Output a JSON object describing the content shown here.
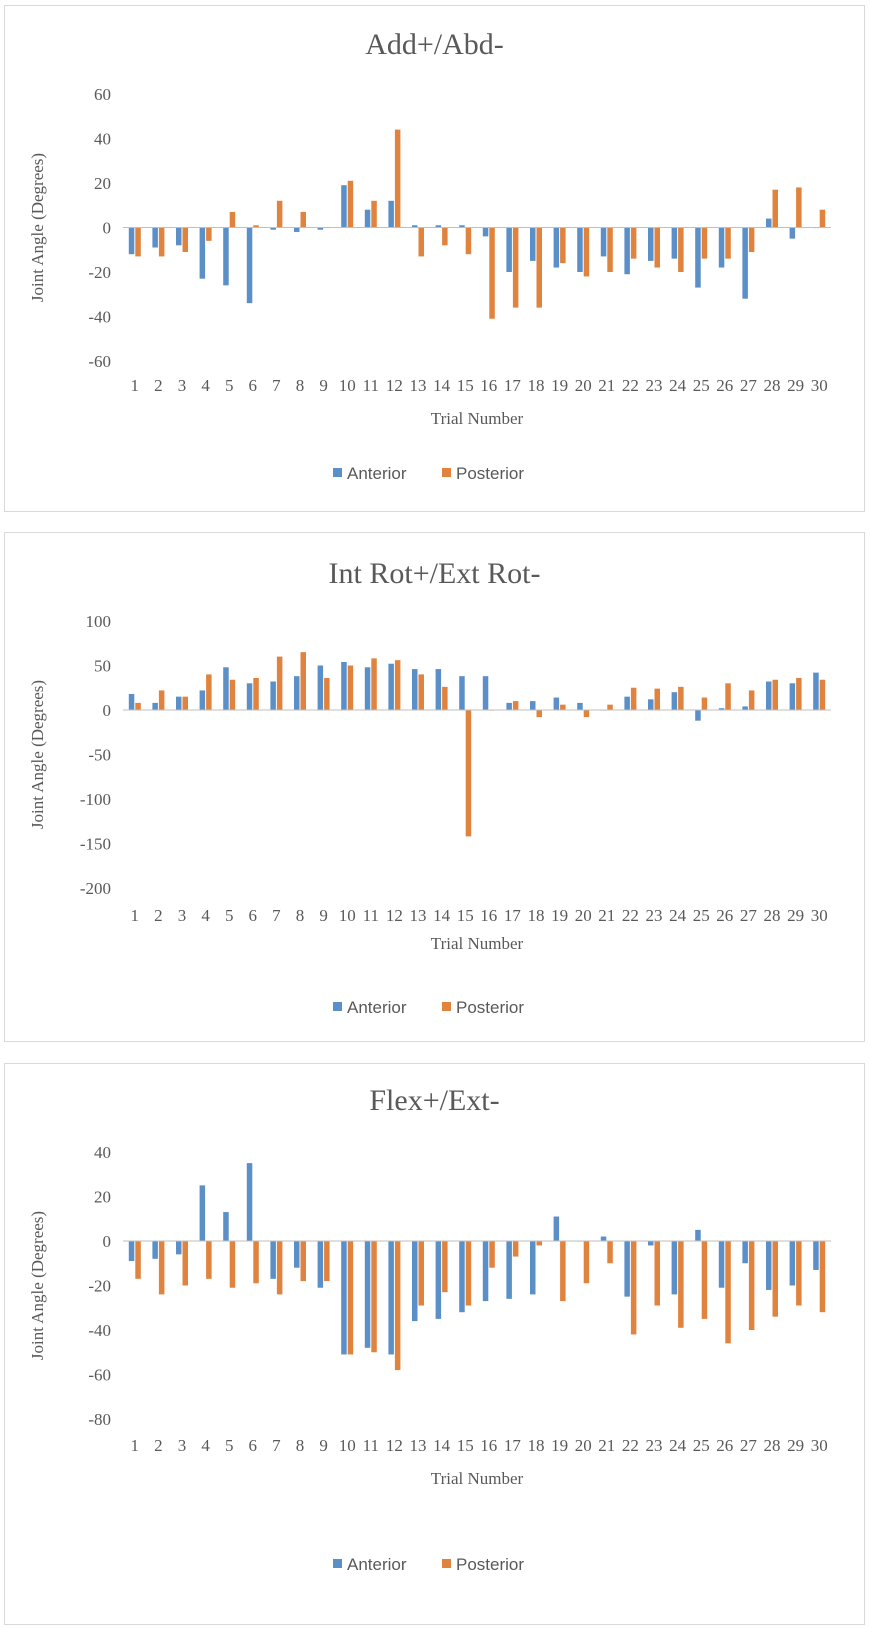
{
  "colors": {
    "anterior": "#5b8fc7",
    "posterior": "#e0833e",
    "axis": "#bfbfbf",
    "text": "#595959"
  },
  "chart_data": [
    {
      "type": "bar",
      "title": "Add+/Abd-",
      "xlabel": "Trial Number",
      "ylabel": "Joint Angle (Degrees)",
      "ylim": [
        -60,
        60
      ],
      "yticks": [
        60,
        40,
        20,
        0,
        -20,
        -40,
        -60
      ],
      "legend": "bottom",
      "grid": false,
      "categories": [
        "1",
        "2",
        "3",
        "4",
        "5",
        "6",
        "7",
        "8",
        "9",
        "10",
        "11",
        "12",
        "13",
        "14",
        "15",
        "16",
        "17",
        "18",
        "19",
        "20",
        "21",
        "22",
        "23",
        "24",
        "25",
        "26",
        "27",
        "28",
        "29",
        "30"
      ],
      "series": [
        {
          "name": "Anterior",
          "values": [
            -12,
            -9,
            -8,
            -23,
            -26,
            -34,
            -1,
            -2,
            -1,
            19,
            8,
            12,
            1,
            1,
            1,
            -4,
            -20,
            -15,
            -18,
            -20,
            -13,
            -21,
            -15,
            -14,
            -27,
            -18,
            -32,
            4,
            -5,
            0
          ]
        },
        {
          "name": "Posterior",
          "values": [
            -13,
            -13,
            -11,
            -6,
            7,
            1,
            12,
            7,
            0,
            21,
            12,
            44,
            -13,
            -8,
            -12,
            -41,
            -36,
            -36,
            -16,
            -22,
            -20,
            -14,
            -18,
            -20,
            -14,
            -14,
            -11,
            17,
            18,
            8
          ]
        }
      ]
    },
    {
      "type": "bar",
      "title": "Int Rot+/Ext Rot-",
      "xlabel": "Trial Number",
      "ylabel": "Joint Angle (Degrees)",
      "ylim": [
        -200,
        100
      ],
      "yticks": [
        100,
        50,
        0,
        -50,
        -100,
        -150,
        -200
      ],
      "legend": "bottom",
      "grid": false,
      "categories": [
        "1",
        "2",
        "3",
        "4",
        "5",
        "6",
        "7",
        "8",
        "9",
        "10",
        "11",
        "12",
        "13",
        "14",
        "15",
        "16",
        "17",
        "18",
        "19",
        "20",
        "21",
        "22",
        "23",
        "24",
        "25",
        "26",
        "27",
        "28",
        "29",
        "30"
      ],
      "series": [
        {
          "name": "Anterior",
          "values": [
            18,
            8,
            15,
            22,
            48,
            30,
            32,
            38,
            50,
            54,
            48,
            52,
            46,
            46,
            38,
            38,
            8,
            10,
            14,
            8,
            0,
            15,
            12,
            20,
            -12,
            2,
            4,
            32,
            30,
            42
          ]
        },
        {
          "name": "Posterior",
          "values": [
            8,
            22,
            15,
            40,
            34,
            36,
            60,
            65,
            36,
            50,
            58,
            56,
            40,
            26,
            -142,
            0,
            10,
            -8,
            6,
            -8,
            6,
            25,
            24,
            26,
            14,
            30,
            22,
            34,
            36,
            34
          ]
        }
      ]
    },
    {
      "type": "bar",
      "title": "Flex+/Ext-",
      "xlabel": "Trial Number",
      "ylabel": "Joint Angle (Degrees)",
      "ylim": [
        -80,
        40
      ],
      "yticks": [
        40,
        20,
        0,
        -20,
        -40,
        -60,
        -80
      ],
      "legend": "bottom",
      "grid": false,
      "categories": [
        "1",
        "2",
        "3",
        "4",
        "5",
        "6",
        "7",
        "8",
        "9",
        "10",
        "11",
        "12",
        "13",
        "14",
        "15",
        "16",
        "17",
        "18",
        "19",
        "20",
        "21",
        "22",
        "23",
        "24",
        "25",
        "26",
        "27",
        "28",
        "29",
        "30"
      ],
      "series": [
        {
          "name": "Anterior",
          "values": [
            -9,
            -8,
            -6,
            25,
            13,
            35,
            -17,
            -12,
            -21,
            -51,
            -48,
            -51,
            -36,
            -35,
            -32,
            -27,
            -26,
            -24,
            11,
            0,
            2,
            -25,
            -2,
            -24,
            5,
            -21,
            -10,
            -22,
            -20,
            -13
          ]
        },
        {
          "name": "Posterior",
          "values": [
            -17,
            -24,
            -20,
            -17,
            -21,
            -19,
            -24,
            -18,
            -18,
            -51,
            -50,
            -58,
            -29,
            -23,
            -29,
            -12,
            -7,
            -2,
            -27,
            -19,
            -10,
            -42,
            -29,
            -39,
            -35,
            -46,
            -40,
            -34,
            -29,
            -32
          ]
        }
      ]
    }
  ]
}
